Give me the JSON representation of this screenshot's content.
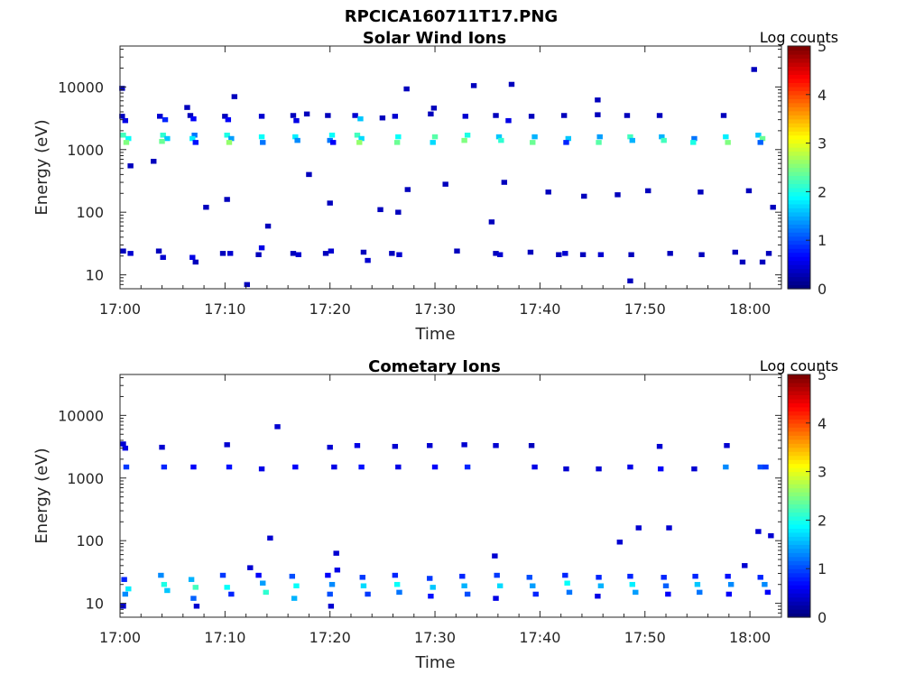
{
  "figure": {
    "title": "RPCICA160711T17.PNG"
  },
  "chart_data": [
    {
      "type": "heatmap",
      "title": "Solar Wind Ions",
      "xlabel": "Time",
      "ylabel": "Energy (eV)",
      "x_ticks": [
        "17:00",
        "17:10",
        "17:20",
        "17:30",
        "17:40",
        "17:50",
        "18:00"
      ],
      "x_range_minutes": [
        0,
        63
      ],
      "y_scale": "log",
      "y_ticks": [
        10,
        100,
        1000,
        10000
      ],
      "y_tick_labels": [
        "10",
        "100",
        "1000",
        "10000"
      ],
      "y_range": [
        6,
        45000
      ],
      "colorbar": {
        "label": "Log counts",
        "range": [
          0,
          5
        ],
        "ticks": [
          "0",
          "1",
          "2",
          "3",
          "4",
          "5"
        ],
        "colormap": "jet"
      },
      "points": [
        [
          0.2,
          3400,
          0.3
        ],
        [
          0.5,
          2900,
          0.5
        ],
        [
          0.3,
          1700,
          2.2
        ],
        [
          0.8,
          1500,
          1.9
        ],
        [
          0.6,
          1300,
          2.5
        ],
        [
          3.8,
          3400,
          0.4
        ],
        [
          4.3,
          3000,
          0.8
        ],
        [
          4.1,
          1700,
          2.1
        ],
        [
          4.5,
          1500,
          1.6
        ],
        [
          4.0,
          1350,
          2.4
        ],
        [
          6.7,
          3500,
          0.3
        ],
        [
          7.0,
          3100,
          0.6
        ],
        [
          7.1,
          1700,
          1.2
        ],
        [
          6.9,
          1500,
          1.8
        ],
        [
          7.2,
          1300,
          0.7
        ],
        [
          10.0,
          3400,
          0.3
        ],
        [
          10.3,
          3000,
          0.6
        ],
        [
          10.2,
          1700,
          2.0
        ],
        [
          10.6,
          1500,
          1.4
        ],
        [
          10.4,
          1300,
          2.6
        ],
        [
          13.5,
          3400,
          0.4
        ],
        [
          13.5,
          1600,
          1.9
        ],
        [
          13.6,
          1300,
          1.2
        ],
        [
          16.5,
          3500,
          0.3
        ],
        [
          16.8,
          2900,
          0.5
        ],
        [
          16.7,
          1600,
          1.8
        ],
        [
          16.9,
          1400,
          1.3
        ],
        [
          19.8,
          3500,
          0.3
        ],
        [
          20.2,
          1700,
          1.9
        ],
        [
          20.0,
          1400,
          1.2
        ],
        [
          20.3,
          1300,
          0.6
        ],
        [
          22.4,
          3500,
          0.4
        ],
        [
          22.9,
          3100,
          1.6
        ],
        [
          22.6,
          1700,
          2.2
        ],
        [
          23.0,
          1500,
          1.7
        ],
        [
          22.8,
          1300,
          2.6
        ],
        [
          26.2,
          3400,
          0.4
        ],
        [
          26.5,
          1600,
          1.9
        ],
        [
          26.4,
          1300,
          2.4
        ],
        [
          29.6,
          3700,
          0.3
        ],
        [
          30.0,
          1600,
          2.3
        ],
        [
          29.8,
          1300,
          1.7
        ],
        [
          29.9,
          4600,
          0.3
        ],
        [
          32.9,
          3400,
          0.4
        ],
        [
          33.1,
          1700,
          2.0
        ],
        [
          32.8,
          1400,
          2.5
        ],
        [
          35.8,
          3500,
          0.3
        ],
        [
          36.1,
          1600,
          1.6
        ],
        [
          36.3,
          1400,
          2.1
        ],
        [
          37.0,
          2900,
          0.5
        ],
        [
          39.2,
          3400,
          0.3
        ],
        [
          39.5,
          1600,
          1.5
        ],
        [
          39.3,
          1300,
          2.4
        ],
        [
          42.3,
          3500,
          0.3
        ],
        [
          42.7,
          1500,
          1.6
        ],
        [
          42.5,
          1300,
          0.8
        ],
        [
          45.5,
          3600,
          0.3
        ],
        [
          45.7,
          1600,
          1.4
        ],
        [
          45.6,
          1300,
          2.3
        ],
        [
          48.3,
          3500,
          0.3
        ],
        [
          48.6,
          1600,
          2.2
        ],
        [
          48.8,
          1400,
          1.5
        ],
        [
          51.4,
          3500,
          0.3
        ],
        [
          51.6,
          1600,
          1.5
        ],
        [
          51.8,
          1400,
          2.2
        ],
        [
          54.7,
          1500,
          1.2
        ],
        [
          54.6,
          1300,
          2.0
        ],
        [
          57.5,
          3500,
          0.3
        ],
        [
          57.7,
          1600,
          1.8
        ],
        [
          57.9,
          1300,
          2.5
        ],
        [
          60.8,
          1700,
          1.6
        ],
        [
          61.2,
          1500,
          2.4
        ],
        [
          61.0,
          1300,
          1.1
        ],
        [
          0.3,
          24,
          0.3
        ],
        [
          1.0,
          22,
          0.4
        ],
        [
          3.7,
          24,
          0.3
        ],
        [
          4.1,
          19,
          0.4
        ],
        [
          6.9,
          19,
          0.5
        ],
        [
          7.2,
          16,
          0.3
        ],
        [
          9.8,
          22,
          0.3
        ],
        [
          10.5,
          22,
          0.4
        ],
        [
          13.2,
          21,
          0.3
        ],
        [
          13.5,
          27,
          0.5
        ],
        [
          16.5,
          22,
          0.3
        ],
        [
          17.0,
          21,
          0.4
        ],
        [
          19.6,
          22,
          0.3
        ],
        [
          20.1,
          24,
          0.4
        ],
        [
          23.2,
          23,
          0.3
        ],
        [
          23.6,
          17,
          0.4
        ],
        [
          25.9,
          22,
          0.3
        ],
        [
          26.6,
          21,
          0.4
        ],
        [
          32.1,
          24,
          0.3
        ],
        [
          35.8,
          22,
          0.3
        ],
        [
          36.2,
          21,
          0.4
        ],
        [
          39.1,
          23,
          0.3
        ],
        [
          41.8,
          21,
          0.3
        ],
        [
          42.4,
          22,
          0.4
        ],
        [
          44.1,
          21,
          0.3
        ],
        [
          45.8,
          21,
          0.4
        ],
        [
          48.7,
          21,
          0.3
        ],
        [
          52.4,
          22,
          0.3
        ],
        [
          55.4,
          21,
          0.3
        ],
        [
          58.6,
          23,
          0.3
        ],
        [
          59.3,
          16,
          0.3
        ],
        [
          61.2,
          16,
          0.3
        ],
        [
          61.8,
          22,
          0.3
        ],
        [
          12.1,
          7,
          0.3
        ],
        [
          48.6,
          8,
          0.3
        ],
        [
          0.2,
          9500,
          0.3
        ],
        [
          6.4,
          4700,
          0.3
        ],
        [
          10.9,
          7000,
          0.3
        ],
        [
          27.3,
          9300,
          0.3
        ],
        [
          33.7,
          10500,
          0.3
        ],
        [
          37.3,
          11000,
          0.3
        ],
        [
          45.5,
          6200,
          0.3
        ],
        [
          60.4,
          19000,
          0.3
        ],
        [
          17.8,
          3700,
          0.3
        ],
        [
          25.0,
          3200,
          0.3
        ],
        [
          1.0,
          550,
          0.3
        ],
        [
          3.2,
          650,
          0.3
        ],
        [
          8.2,
          120,
          0.3
        ],
        [
          10.2,
          160,
          0.3
        ],
        [
          18.0,
          400,
          0.3
        ],
        [
          20.0,
          140,
          0.3
        ],
        [
          24.8,
          110,
          0.3
        ],
        [
          27.4,
          230,
          0.3
        ],
        [
          31.0,
          280,
          0.3
        ],
        [
          35.4,
          70,
          0.3
        ],
        [
          36.6,
          300,
          0.3
        ],
        [
          40.8,
          210,
          0.3
        ],
        [
          44.2,
          180,
          0.3
        ],
        [
          47.4,
          190,
          0.3
        ],
        [
          50.3,
          220,
          0.3
        ],
        [
          55.3,
          210,
          0.3
        ],
        [
          59.9,
          220,
          0.3
        ],
        [
          62.2,
          120,
          0.3
        ],
        [
          14.1,
          60,
          0.3
        ],
        [
          26.5,
          100,
          0.3
        ]
      ]
    },
    {
      "type": "heatmap",
      "title": "Cometary Ions",
      "xlabel": "Time",
      "ylabel": "Energy (eV)",
      "x_ticks": [
        "17:00",
        "17:10",
        "17:20",
        "17:30",
        "17:40",
        "17:50",
        "18:00"
      ],
      "x_range_minutes": [
        0,
        63
      ],
      "y_scale": "log",
      "y_ticks": [
        10,
        100,
        1000,
        10000
      ],
      "y_tick_labels": [
        "10",
        "100",
        "1000",
        "10000"
      ],
      "y_range": [
        6,
        45000
      ],
      "colorbar": {
        "label": "Log counts",
        "range": [
          0,
          5
        ],
        "ticks": [
          "0",
          "1",
          "2",
          "3",
          "4",
          "5"
        ],
        "colormap": "jet"
      },
      "points": [
        [
          0.3,
          3500,
          0.4
        ],
        [
          0.5,
          3000,
          0.5
        ],
        [
          0.6,
          1500,
          0.9
        ],
        [
          4.0,
          3100,
          0.4
        ],
        [
          4.2,
          1500,
          0.8
        ],
        [
          7.0,
          1500,
          0.6
        ],
        [
          10.2,
          3400,
          0.4
        ],
        [
          10.4,
          1500,
          0.7
        ],
        [
          13.5,
          1400,
          0.5
        ],
        [
          16.7,
          1500,
          0.6
        ],
        [
          20.0,
          3100,
          0.4
        ],
        [
          20.4,
          1500,
          0.5
        ],
        [
          22.6,
          3300,
          0.5
        ],
        [
          23.0,
          1500,
          0.7
        ],
        [
          26.2,
          3200,
          0.4
        ],
        [
          26.5,
          1500,
          0.5
        ],
        [
          29.5,
          3300,
          0.4
        ],
        [
          30.0,
          1500,
          0.6
        ],
        [
          32.8,
          3400,
          0.4
        ],
        [
          33.1,
          1500,
          0.8
        ],
        [
          35.8,
          3300,
          0.4
        ],
        [
          39.2,
          3300,
          0.3
        ],
        [
          39.5,
          1500,
          0.5
        ],
        [
          42.5,
          1400,
          0.4
        ],
        [
          45.6,
          1400,
          0.4
        ],
        [
          48.6,
          1500,
          0.5
        ],
        [
          51.4,
          3200,
          0.4
        ],
        [
          51.5,
          1400,
          0.6
        ],
        [
          54.7,
          1400,
          0.4
        ],
        [
          57.8,
          3300,
          0.4
        ],
        [
          57.7,
          1500,
          1.3
        ],
        [
          61.0,
          1500,
          1.0
        ],
        [
          61.5,
          1500,
          0.9
        ],
        [
          15.0,
          6600,
          0.4
        ],
        [
          0.4,
          24,
          0.8
        ],
        [
          0.8,
          17,
          1.8
        ],
        [
          0.5,
          14,
          1.3
        ],
        [
          0.3,
          9,
          0.4
        ],
        [
          3.9,
          28,
          1.3
        ],
        [
          4.2,
          20,
          2.0
        ],
        [
          4.5,
          16,
          1.6
        ],
        [
          6.8,
          24,
          1.5
        ],
        [
          7.2,
          18,
          2.2
        ],
        [
          7.0,
          12,
          1.1
        ],
        [
          7.3,
          9,
          0.4
        ],
        [
          9.8,
          28,
          0.9
        ],
        [
          10.2,
          18,
          1.9
        ],
        [
          10.6,
          14,
          0.8
        ],
        [
          13.2,
          28,
          0.6
        ],
        [
          13.6,
          21,
          1.4
        ],
        [
          13.9,
          15,
          2.1
        ],
        [
          16.4,
          27,
          1.0
        ],
        [
          16.8,
          19,
          1.9
        ],
        [
          16.6,
          12,
          1.5
        ],
        [
          19.8,
          28,
          0.6
        ],
        [
          20.2,
          20,
          1.3
        ],
        [
          20.0,
          14,
          1.0
        ],
        [
          20.1,
          9,
          0.4
        ],
        [
          20.7,
          34,
          0.5
        ],
        [
          23.1,
          26,
          0.9
        ],
        [
          23.2,
          19,
          1.7
        ],
        [
          23.6,
          14,
          0.9
        ],
        [
          26.2,
          28,
          0.8
        ],
        [
          26.4,
          20,
          1.9
        ],
        [
          26.6,
          15,
          1.2
        ],
        [
          29.5,
          25,
          0.9
        ],
        [
          29.8,
          18,
          1.6
        ],
        [
          29.6,
          13,
          0.7
        ],
        [
          32.6,
          27,
          0.8
        ],
        [
          32.8,
          19,
          1.5
        ],
        [
          33.1,
          14,
          1.0
        ],
        [
          35.9,
          28,
          0.9
        ],
        [
          36.2,
          19,
          1.7
        ],
        [
          35.8,
          12,
          0.5
        ],
        [
          39.0,
          26,
          1.0
        ],
        [
          39.3,
          19,
          1.4
        ],
        [
          39.6,
          14,
          0.8
        ],
        [
          42.4,
          28,
          0.8
        ],
        [
          42.6,
          21,
          1.9
        ],
        [
          42.8,
          15,
          1.2
        ],
        [
          45.6,
          26,
          0.8
        ],
        [
          45.8,
          19,
          1.5
        ],
        [
          45.5,
          13,
          0.5
        ],
        [
          48.6,
          27,
          0.8
        ],
        [
          48.8,
          20,
          1.8
        ],
        [
          49.1,
          15,
          1.4
        ],
        [
          51.8,
          26,
          0.8
        ],
        [
          52.0,
          19,
          1.1
        ],
        [
          52.2,
          14,
          0.6
        ],
        [
          54.8,
          27,
          0.8
        ],
        [
          55.0,
          20,
          1.6
        ],
        [
          55.2,
          15,
          1.2
        ],
        [
          57.9,
          27,
          0.7
        ],
        [
          58.2,
          20,
          1.3
        ],
        [
          58.0,
          14,
          0.6
        ],
        [
          61.0,
          26,
          0.8
        ],
        [
          61.4,
          20,
          1.3
        ],
        [
          61.7,
          15,
          0.6
        ],
        [
          14.3,
          110,
          0.4
        ],
        [
          20.6,
          63,
          0.4
        ],
        [
          35.7,
          57,
          0.4
        ],
        [
          47.6,
          95,
          0.4
        ],
        [
          49.4,
          160,
          0.4
        ],
        [
          52.3,
          160,
          0.4
        ],
        [
          60.8,
          140,
          0.4
        ],
        [
          62.0,
          120,
          0.4
        ],
        [
          12.4,
          37,
          0.4
        ],
        [
          59.5,
          40,
          0.4
        ]
      ]
    }
  ]
}
